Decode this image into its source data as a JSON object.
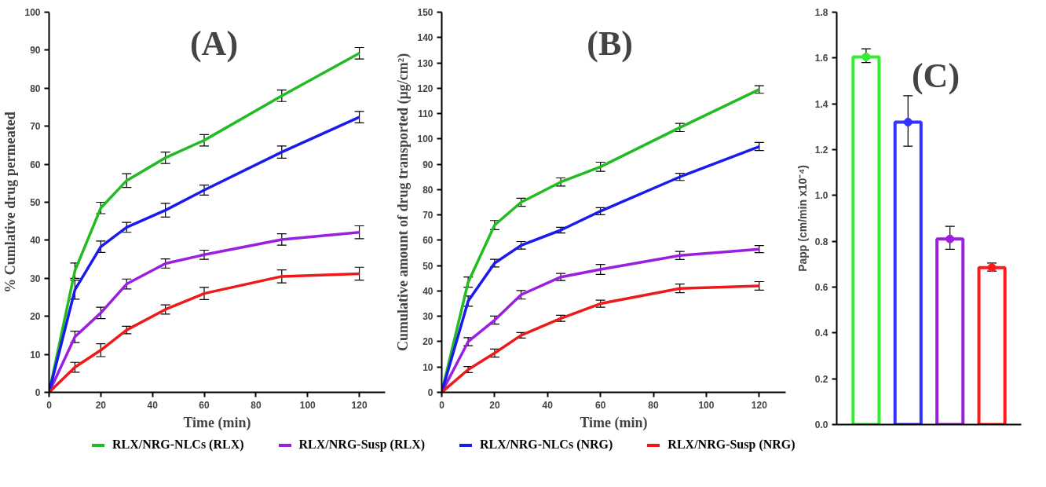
{
  "chart_data": [
    {
      "type": "line",
      "annotations": [
        "(A)"
      ],
      "xlabel": "Time (min)",
      "ylabel": "% Cumlative drug permeated",
      "x": [
        0,
        10,
        20,
        30,
        45,
        60,
        90,
        120
      ],
      "xlim": [
        0,
        130
      ],
      "xticks": [
        0,
        20,
        40,
        60,
        80,
        100,
        120
      ],
      "ylim": [
        0,
        100
      ],
      "yticks": [
        0,
        10,
        20,
        30,
        40,
        50,
        60,
        70,
        80,
        90,
        100
      ],
      "grid": false,
      "legend": "bottom",
      "marker": "none",
      "line_style": "solid",
      "series": [
        {
          "name": "RLX/NRG-NLCs (RLX)",
          "color": "#22bb22",
          "values": [
            0,
            32,
            48.5,
            55.7,
            61.7,
            66.3,
            78,
            89.2
          ],
          "errors": [
            null,
            2,
            1.5,
            1.8,
            1.5,
            1.5,
            1.5,
            1.5
          ]
        },
        {
          "name": "RLX/NRG-Susp (RLX)",
          "color": "#9b1fe0",
          "values": [
            0,
            14.6,
            20.9,
            28.5,
            33.9,
            36.2,
            40.2,
            42.1
          ],
          "errors": [
            null,
            1.5,
            1.5,
            1.3,
            1.2,
            1.2,
            1.5,
            1.7
          ]
        },
        {
          "name": "RLX/NRG-NLCs (NRG)",
          "color": "#1a1aee",
          "values": [
            0,
            27,
            38.3,
            43.4,
            47.9,
            53.2,
            63.2,
            72.4
          ],
          "errors": [
            null,
            2.5,
            1.5,
            1.3,
            1.8,
            1.3,
            1.6,
            1.5
          ]
        },
        {
          "name": "RLX/NRG-Susp (NRG)",
          "color": "#ee1a1a",
          "values": [
            0,
            6.6,
            11.1,
            16.4,
            21.8,
            26,
            30.5,
            31.2
          ],
          "errors": [
            null,
            1.3,
            1.7,
            1,
            1.2,
            1.6,
            1.7,
            1.7
          ]
        }
      ]
    },
    {
      "type": "line",
      "annotations": [
        "(B)"
      ],
      "xlabel": "Time (min)",
      "ylabel": "Cumulative amount of drug transported (µg/cm²)",
      "x": [
        0,
        10,
        20,
        30,
        45,
        60,
        90,
        120
      ],
      "xlim": [
        0,
        130
      ],
      "xticks": [
        0,
        20,
        40,
        60,
        80,
        100,
        120
      ],
      "ylim": [
        0,
        150
      ],
      "yticks": [
        0,
        10,
        20,
        30,
        40,
        50,
        60,
        70,
        80,
        90,
        100,
        110,
        120,
        130,
        140,
        150
      ],
      "grid": false,
      "marker": "none",
      "line_style": "solid",
      "series": [
        {
          "color": "#22bb22",
          "values": [
            0,
            43.5,
            66,
            75,
            83,
            89,
            104.5,
            119.5
          ],
          "errors": [
            null,
            2,
            1.8,
            1.6,
            1.6,
            1.8,
            1.6,
            1.5
          ]
        },
        {
          "color": "#9b1fe0",
          "values": [
            0,
            20,
            28.5,
            38.5,
            45.5,
            48.5,
            54,
            56.5
          ],
          "errors": [
            null,
            1.6,
            1.6,
            1.7,
            1.4,
            2,
            1.6,
            1.4
          ]
        },
        {
          "color": "#1a1aee",
          "values": [
            0,
            36,
            51,
            58,
            64,
            71.5,
            85,
            97
          ],
          "errors": [
            null,
            2,
            1.5,
            1.5,
            1.1,
            1.4,
            1.4,
            1.6
          ]
        },
        {
          "color": "#ee1a1a",
          "values": [
            0,
            9,
            15.5,
            22.5,
            29.2,
            35,
            41,
            42
          ],
          "errors": [
            null,
            1.2,
            1.6,
            1.1,
            1.2,
            1.4,
            1.7,
            1.7
          ]
        }
      ]
    },
    {
      "type": "bar",
      "annotations": [
        "(C)"
      ],
      "ylabel": "Papp (cm/min x10⁻⁴)",
      "categories": [
        null,
        null,
        null,
        null
      ],
      "series": [
        {
          "type": "bar",
          "values": [
            1.605,
            1.32,
            0.81,
            0.685
          ],
          "colors": [
            "#33ee33",
            "#3333ff",
            "#9b1fe0",
            "#ff1a1a"
          ],
          "errors": [
            [
              1.58,
              1.64
            ],
            [
              1.215,
              1.435
            ],
            [
              0.765,
              0.865
            ],
            [
              0.67,
              0.705
            ]
          ]
        },
        {
          "type": "scatter",
          "marker": "circle",
          "values": [
            1.605,
            1.32,
            0.81,
            0.685
          ],
          "colors": [
            "#33ee33",
            "#3333ff",
            "#9b1fe0",
            "#ff1a1a"
          ]
        }
      ],
      "ylim": [
        0,
        1.8
      ],
      "yticks": [
        {
          "value": 0,
          "label": "0.0"
        },
        0.2,
        0.4,
        0.6,
        0.8,
        {
          "value": 1,
          "label": "1.0"
        },
        1.2,
        1.4,
        1.6,
        1.8
      ],
      "tick_labels": "y",
      "grid": false
    }
  ]
}
